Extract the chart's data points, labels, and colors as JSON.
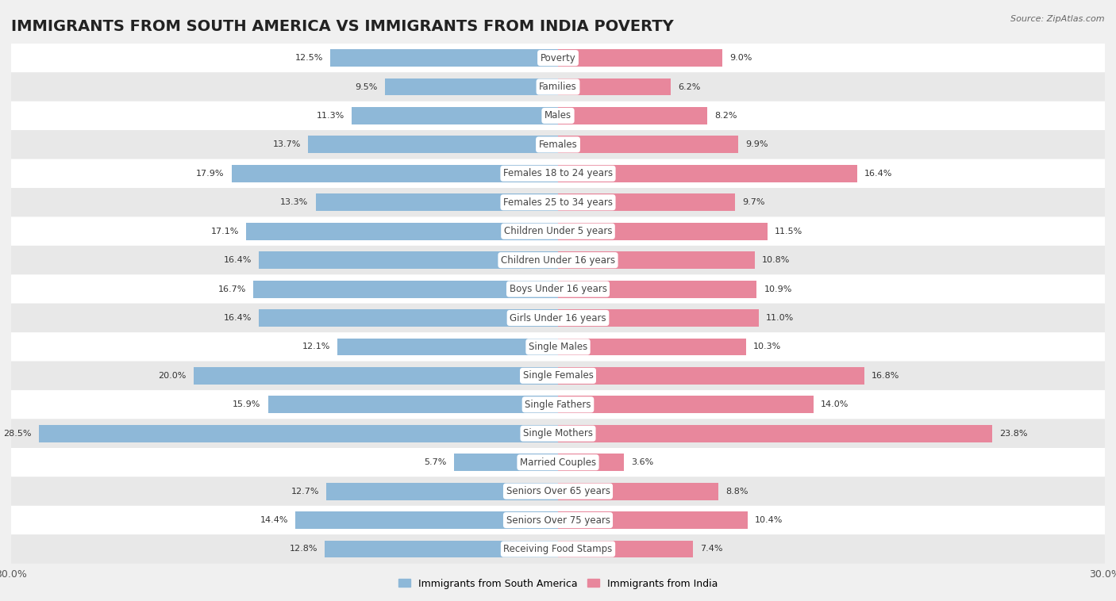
{
  "title": "IMMIGRANTS FROM SOUTH AMERICA VS IMMIGRANTS FROM INDIA POVERTY",
  "source": "Source: ZipAtlas.com",
  "categories": [
    "Poverty",
    "Families",
    "Males",
    "Females",
    "Females 18 to 24 years",
    "Females 25 to 34 years",
    "Children Under 5 years",
    "Children Under 16 years",
    "Boys Under 16 years",
    "Girls Under 16 years",
    "Single Males",
    "Single Females",
    "Single Fathers",
    "Single Mothers",
    "Married Couples",
    "Seniors Over 65 years",
    "Seniors Over 75 years",
    "Receiving Food Stamps"
  ],
  "left_values": [
    12.5,
    9.5,
    11.3,
    13.7,
    17.9,
    13.3,
    17.1,
    16.4,
    16.7,
    16.4,
    12.1,
    20.0,
    15.9,
    28.5,
    5.7,
    12.7,
    14.4,
    12.8
  ],
  "right_values": [
    9.0,
    6.2,
    8.2,
    9.9,
    16.4,
    9.7,
    11.5,
    10.8,
    10.9,
    11.0,
    10.3,
    16.8,
    14.0,
    23.8,
    3.6,
    8.8,
    10.4,
    7.4
  ],
  "left_color": "#8eb8d8",
  "right_color": "#e8879c",
  "left_label": "Immigrants from South America",
  "right_label": "Immigrants from India",
  "x_max": 30.0,
  "bg_color": "#f0f0f0",
  "row_colors_even": "#ffffff",
  "row_colors_odd": "#e8e8e8",
  "title_fontsize": 14,
  "label_fontsize": 8.5,
  "value_fontsize": 8,
  "legend_fontsize": 9,
  "axis_fontsize": 9
}
